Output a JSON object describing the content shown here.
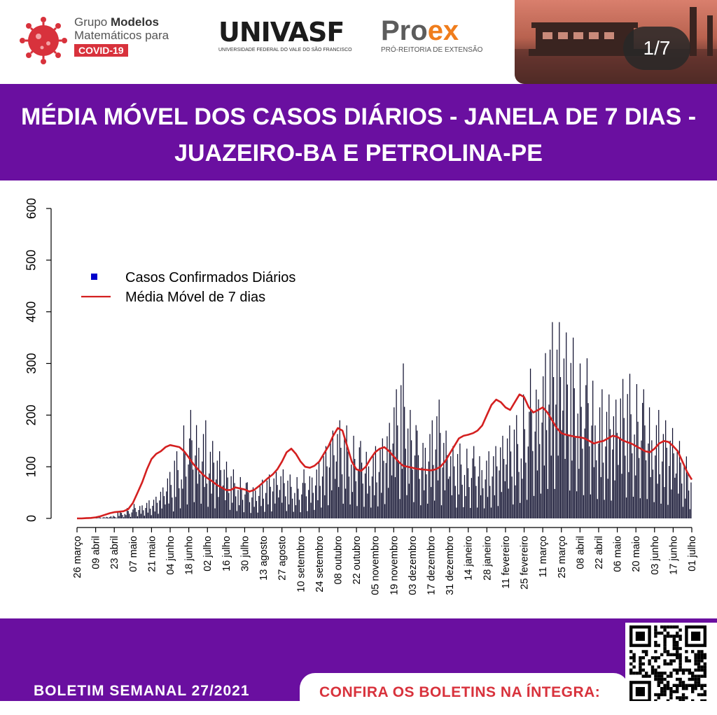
{
  "header": {
    "covid_logo": {
      "line1": "Grupo ",
      "line1_bold": "Modelos",
      "line2": "Matemáticos para",
      "badge": "COVID-19"
    },
    "univasf_logo": {
      "main": "UNIVASF",
      "sub": "UNIVERSIDADE FEDERAL DO VALE DO SÃO FRANCISCO"
    },
    "proex_logo": {
      "main_a": "Pro",
      "main_b": "ex",
      "sub": "PRÓ-REITORIA DE EXTENSÃO"
    },
    "page_counter": "1/7"
  },
  "title": {
    "line1": "MÉDIA MÓVEL DOS CASOS DIÁRIOS - JANELA DE 7 DIAS -",
    "line2": "JUAZEIRO-BA E PETROLINA-PE"
  },
  "footer": {
    "bulletin": "BOLETIM SEMANAL 27/2021",
    "cta": "CONFIRA OS BOLETINS NA ÍNTEGRA:"
  },
  "colors": {
    "band": "#6a0fa0",
    "bars": "#0f0f2e",
    "moving_average": "#d42020",
    "legend_point": "#0000cc",
    "accent_red": "#d8323c"
  },
  "chart_data": {
    "type": "bar",
    "overlay": "line",
    "ylim": [
      0,
      600
    ],
    "yticks": [
      0,
      100,
      200,
      300,
      400,
      500,
      600
    ],
    "xticks": [
      "26 março",
      "09 abril",
      "23 abril",
      "07 maio",
      "21 maio",
      "04 junho",
      "18 junho",
      "02 julho",
      "16 julho",
      "30 julho",
      "13 agosto",
      "27 agosto",
      "10 setembro",
      "24 setembro",
      "08 outubro",
      "22 outubro",
      "05 novembro",
      "19 novembro",
      "03 dezembro",
      "17 dezembro",
      "31 dezembro",
      "14 janeiro",
      "28 janeiro",
      "11 fevereiro",
      "25 fevereiro",
      "11 março",
      "25 março",
      "08 abril",
      "22 abril",
      "06 maio",
      "20 maio",
      "03 junho",
      "17 junho",
      "01 julho"
    ],
    "legend": {
      "position": "top-left",
      "entries": [
        "Casos Confirmados Diários",
        "Média Móvel de 7 dias"
      ]
    },
    "grid": false,
    "series": [
      {
        "name": "Casos Confirmados Diários",
        "kind": "bar",
        "weekly_peaks": [
          0,
          1,
          2,
          3,
          5,
          15,
          20,
          28,
          35,
          42,
          60,
          90,
          130,
          180,
          210,
          190,
          150,
          130,
          110,
          95,
          80,
          70,
          75,
          85,
          90,
          95,
          85,
          80,
          95,
          110,
          140,
          170,
          190,
          180,
          160,
          150,
          140,
          155,
          185,
          250,
          300,
          210,
          170,
          190,
          230,
          170,
          140,
          145,
          135,
          140,
          130,
          140,
          160,
          180,
          200,
          240,
          290,
          320,
          380,
          380,
          360,
          350,
          300,
          310,
          250,
          240,
          230,
          270,
          280,
          260,
          250,
          210,
          190,
          175,
          150,
          120
        ]
      },
      {
        "name": "Média Móvel de 7 dias",
        "kind": "line",
        "weekly_values": [
          0,
          0,
          0.5,
          1,
          2,
          4,
          7,
          10,
          12,
          13,
          14,
          18,
          30,
          50,
          70,
          95,
          115,
          125,
          130,
          138,
          142,
          140,
          138,
          130,
          118,
          105,
          95,
          85,
          78,
          72,
          65,
          60,
          55,
          55,
          60,
          58,
          56,
          52,
          55,
          62,
          70,
          78,
          85,
          95,
          110,
          128,
          135,
          125,
          110,
          100,
          98,
          102,
          110,
          125,
          140,
          160,
          175,
          170,
          140,
          110,
          95,
          92,
          100,
          115,
          128,
          135,
          138,
          130,
          120,
          110,
          102,
          100,
          98,
          96,
          95,
          94,
          93,
          95,
          100,
          110,
          125,
          140,
          155,
          160,
          162,
          165,
          170,
          180,
          200,
          220,
          230,
          225,
          215,
          210,
          225,
          240,
          235,
          215,
          205,
          210,
          215,
          205,
          190,
          175,
          165,
          162,
          160,
          158,
          157,
          155,
          150,
          145,
          148,
          150,
          155,
          160,
          158,
          152,
          148,
          145,
          140,
          135,
          130,
          128,
          135,
          145,
          150,
          148,
          140,
          130,
          110,
          90,
          75
        ]
      }
    ]
  }
}
